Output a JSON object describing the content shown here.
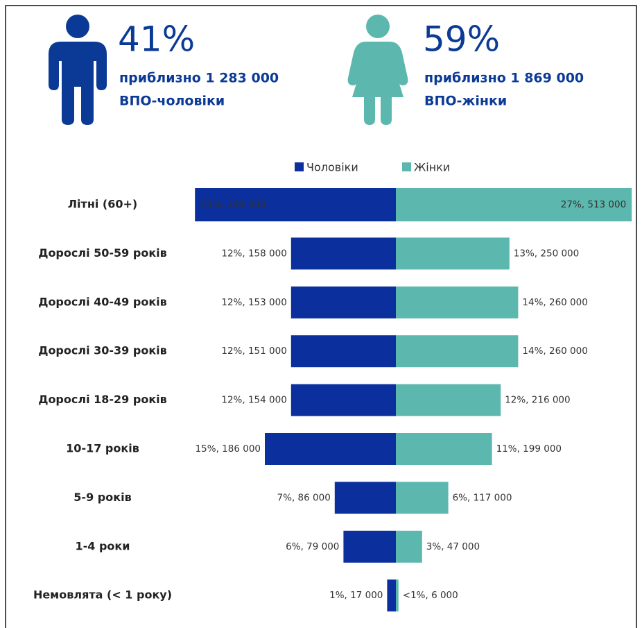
{
  "header": {
    "men": {
      "percent": "41%",
      "approx": "приблизно 1 283 000",
      "label": "ВПО-чоловіки"
    },
    "women": {
      "percent": "59%",
      "approx": "приблизно 1 869 000",
      "label": "ВПО-жінки"
    }
  },
  "chart_data": {
    "type": "bar",
    "categories": [
      "Літні (60+)",
      "Дорослі 50-59 років",
      "Дорослі 40-49 років",
      "Дорослі 30-39 років",
      "Дорослі 18-29 років",
      "10-17 років",
      "5-9 років",
      "1-4 роки",
      "Немовлята (< 1 року)"
    ],
    "series": [
      {
        "name": "Чоловіки",
        "color": "#0b2f9c",
        "values": [
          23,
          12,
          12,
          12,
          12,
          15,
          7,
          6,
          1
        ],
        "value_labels": [
          "23%, 299 000",
          "12%, 158 000",
          "12%, 153 000",
          "12%, 151 000",
          "12%, 154 000",
          "15%, 186 000",
          "7%, 86 000",
          "6%, 79 000",
          "1%, 17 000"
        ]
      },
      {
        "name": "Жінки",
        "color": "#5cb8ae",
        "values": [
          27,
          13,
          14,
          14,
          12,
          11,
          6,
          3,
          0.3
        ],
        "value_labels": [
          "27%, 513 000",
          "13%, 250 000",
          "14%, 260 000",
          "14%, 260 000",
          "12%, 216 000",
          "11%, 199 000",
          "6%, 117 000",
          "3%, 47 000",
          "<1%, 6 000"
        ]
      }
    ]
  }
}
